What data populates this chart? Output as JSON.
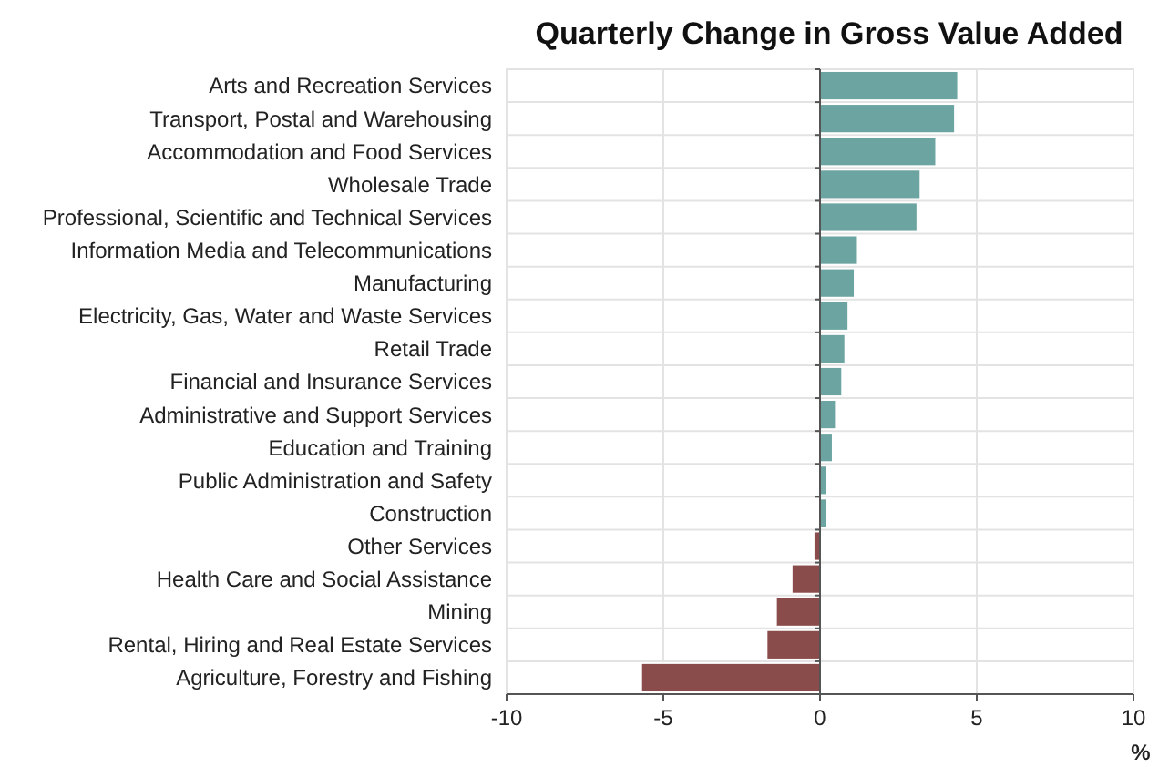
{
  "chart_data": {
    "type": "bar",
    "orientation": "horizontal",
    "title": "Quarterly Change in Gross Value Added",
    "xlabel": "%",
    "categories": [
      "Arts and Recreation Services",
      "Transport, Postal and Warehousing",
      "Accommodation and Food Services",
      "Wholesale Trade",
      "Professional, Scientific and Technical Services",
      "Information Media and Telecommunications",
      "Manufacturing",
      "Electricity, Gas, Water and Waste Services",
      "Retail Trade",
      "Financial and Insurance Services",
      "Administrative and Support Services",
      "Education and Training",
      "Public Administration and Safety",
      "Construction",
      "Other Services",
      "Health Care and Social Assistance",
      "Mining",
      "Rental, Hiring and Real Estate Services",
      "Agriculture, Forestry and Fishing"
    ],
    "values": [
      4.4,
      4.3,
      3.7,
      3.2,
      3.1,
      1.2,
      1.1,
      0.9,
      0.8,
      0.7,
      0.5,
      0.4,
      0.2,
      0.2,
      -0.2,
      -0.9,
      -1.4,
      -1.7,
      -5.7
    ],
    "colors": [
      "#6ca4a1",
      "#6ca4a1",
      "#6ca4a1",
      "#6ca4a1",
      "#6ca4a1",
      "#6ca4a1",
      "#6ca4a1",
      "#6ca4a1",
      "#6ca4a1",
      "#6ca4a1",
      "#6ca4a1",
      "#6ca4a1",
      "#6ca4a1",
      "#6ca4a1",
      "#8a4b4b",
      "#8a4b4b",
      "#8a4b4b",
      "#8a4b4b",
      "#8a4b4b"
    ],
    "xlim": [
      -10,
      10
    ],
    "xticks": [
      -10,
      -5,
      0,
      5,
      10
    ],
    "grid": true
  }
}
